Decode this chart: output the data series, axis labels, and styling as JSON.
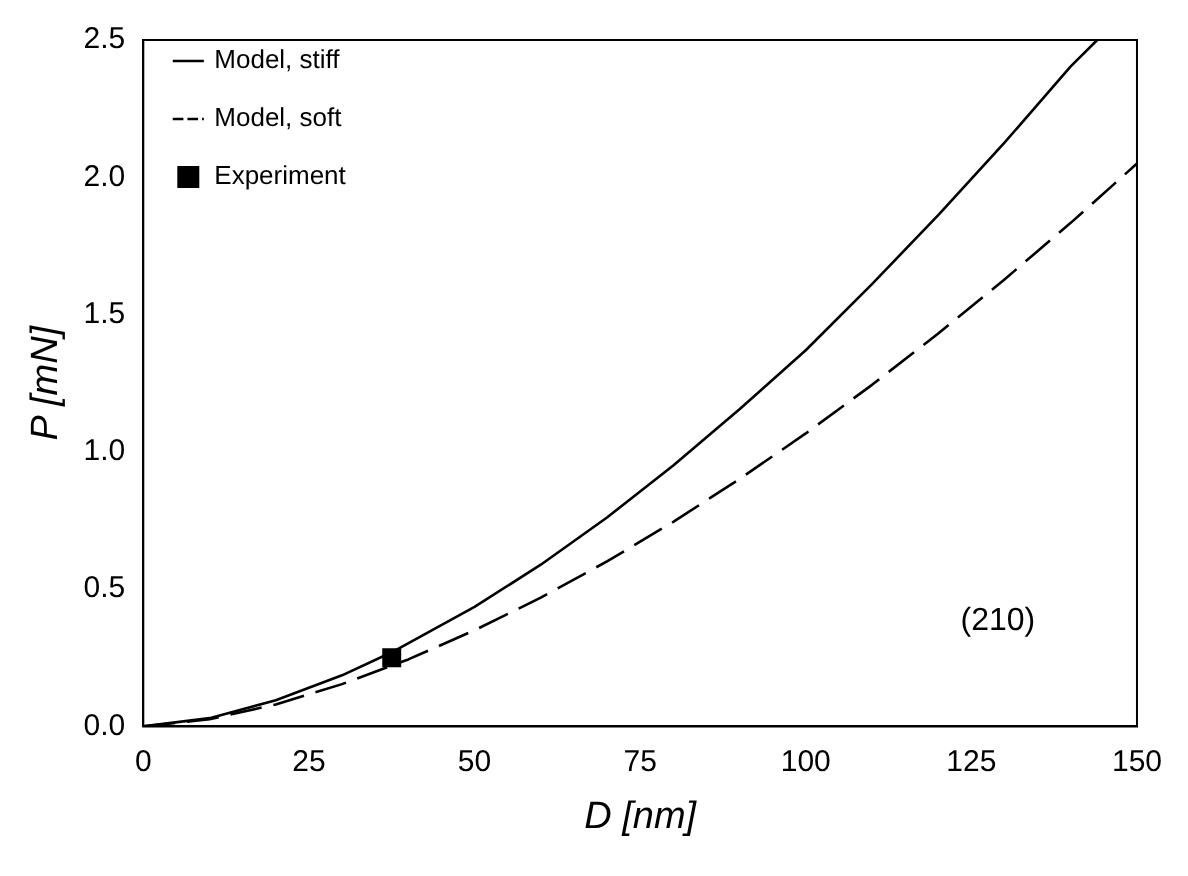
{
  "chart_data": {
    "type": "line",
    "xlabel": "D [nm]",
    "ylabel": "P [mN]",
    "xlim": [
      0,
      150
    ],
    "ylim": [
      0,
      2.5
    ],
    "xticks": [
      0,
      25,
      50,
      75,
      100,
      125,
      150
    ],
    "yticks": [
      {
        "value": 0,
        "label": "0.0"
      },
      {
        "value": 0.5,
        "label": "0.5"
      },
      {
        "value": 1,
        "label": "1.0"
      },
      {
        "value": 1.5,
        "label": "1.5"
      },
      {
        "value": 2,
        "label": "2.0"
      },
      {
        "value": 2.5,
        "label": "2.5"
      }
    ],
    "grid": false,
    "legend": "top left",
    "annotations": [
      "(210)"
    ],
    "series": [
      {
        "name": "Model, stiff",
        "color": "#000000",
        "line_style": "solid",
        "marker": "none",
        "x": [
          0,
          10,
          20,
          30,
          37.5,
          50,
          60,
          70,
          80,
          90,
          100,
          110,
          120,
          130,
          140,
          144
        ],
        "values": [
          0,
          0.03,
          0.095,
          0.186,
          0.27,
          0.435,
          0.589,
          0.761,
          0.95,
          1.155,
          1.37,
          1.611,
          1.862,
          2.126,
          2.404,
          2.5
        ]
      },
      {
        "name": "Model, soft",
        "color": "#000000",
        "line_style": "dashed",
        "marker": "none",
        "x": [
          0,
          10,
          20,
          30,
          40,
          50,
          60,
          70,
          80,
          90,
          100,
          110,
          120,
          130,
          140,
          150
        ],
        "values": [
          0,
          0.026,
          0.08,
          0.154,
          0.244,
          0.35,
          0.469,
          0.601,
          0.745,
          0.901,
          1.067,
          1.244,
          1.431,
          1.628,
          1.834,
          2.05
        ]
      },
      {
        "name": "Experiment",
        "type": "scatter",
        "color": "#000000",
        "marker": "square",
        "x": [
          37.5
        ],
        "values": [
          0.25
        ]
      }
    ]
  }
}
